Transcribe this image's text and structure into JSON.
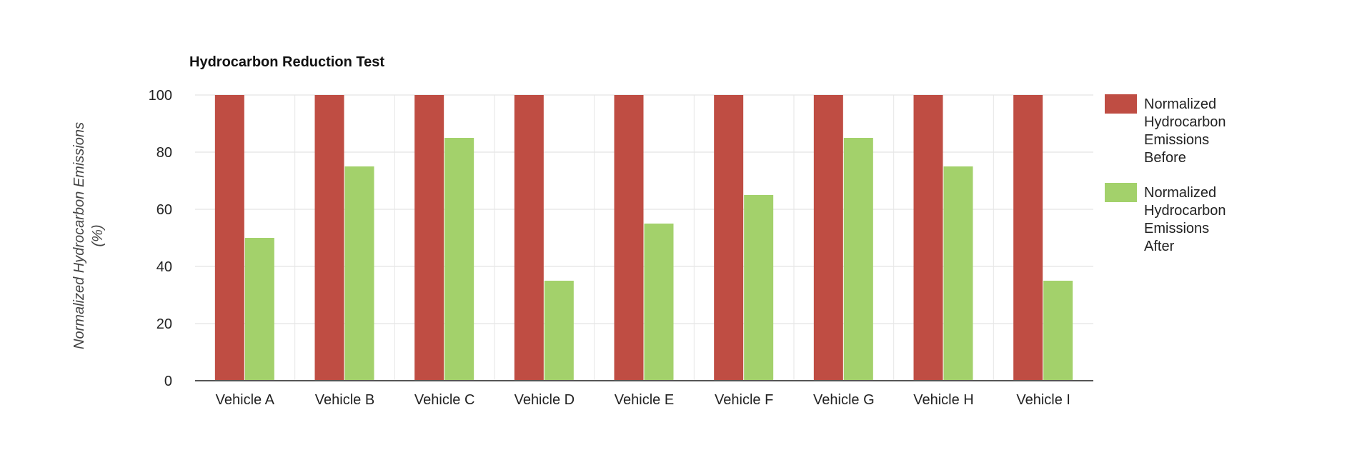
{
  "chart_data": {
    "type": "bar",
    "title": "Hydrocarbon Reduction Test",
    "ylabel": "Normalized Hydrocarbon Emissions (%)",
    "ylabel_lines": [
      "Normalized Hydrocarbon Emissions",
      "(%)"
    ],
    "xlabel": "",
    "ylim": [
      0,
      100
    ],
    "yticks": [
      0,
      20,
      40,
      60,
      80,
      100
    ],
    "grid": true,
    "legend_position": "right",
    "categories": [
      "Vehicle A",
      "Vehicle B",
      "Vehicle C",
      "Vehicle D",
      "Vehicle E",
      "Vehicle F",
      "Vehicle G",
      "Vehicle H",
      "Vehicle I"
    ],
    "series": [
      {
        "name": "Normalized Hydrocarbon Emissions Before",
        "legend_lines": [
          "Normalized",
          "Hydrocarbon",
          "Emissions",
          "Before"
        ],
        "color": "#bf4d43",
        "values": [
          100,
          100,
          100,
          100,
          100,
          100,
          100,
          100,
          100
        ]
      },
      {
        "name": "Normalized Hydrocarbon Emissions After",
        "legend_lines": [
          "Normalized",
          "Hydrocarbon",
          "Emissions",
          "After"
        ],
        "color": "#a3d16b",
        "values": [
          50,
          75,
          85,
          35,
          55,
          65,
          85,
          75,
          35
        ]
      }
    ]
  }
}
